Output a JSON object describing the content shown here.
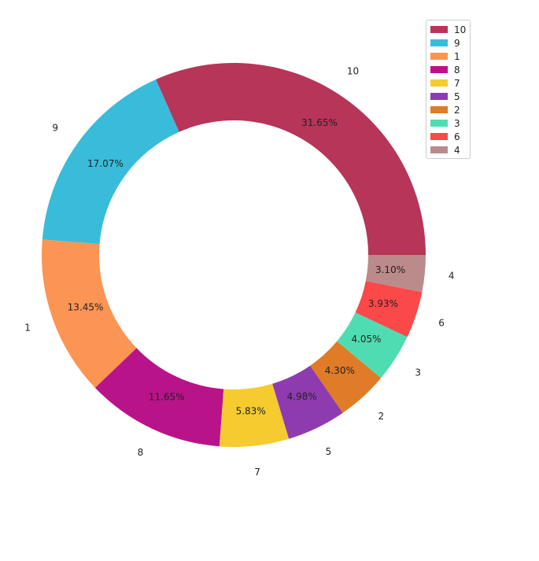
{
  "chart_data": {
    "type": "pie",
    "style": "donut",
    "start_angle_deg": 0,
    "direction": "counterclockwise",
    "legend_position": "top-right",
    "slices": [
      {
        "label": "10",
        "value": 31.65,
        "pct_label": "31.65%",
        "color": "#b63558"
      },
      {
        "label": "9",
        "value": 17.07,
        "pct_label": "17.07%",
        "color": "#38bcd9"
      },
      {
        "label": "1",
        "value": 13.45,
        "pct_label": "13.45%",
        "color": "#fc9453"
      },
      {
        "label": "8",
        "value": 11.65,
        "pct_label": "11.65%",
        "color": "#b9138a"
      },
      {
        "label": "7",
        "value": 5.83,
        "pct_label": "5.83%",
        "color": "#f5cb2f"
      },
      {
        "label": "5",
        "value": 4.98,
        "pct_label": "4.98%",
        "color": "#8e3bb0"
      },
      {
        "label": "2",
        "value": 4.3,
        "pct_label": "4.30%",
        "color": "#e07b27"
      },
      {
        "label": "3",
        "value": 4.05,
        "pct_label": "4.05%",
        "color": "#50dcb3"
      },
      {
        "label": "6",
        "value": 3.93,
        "pct_label": "3.93%",
        "color": "#fb4848"
      },
      {
        "label": "4",
        "value": 3.1,
        "pct_label": "3.10%",
        "color": "#bb8a8a"
      }
    ]
  }
}
